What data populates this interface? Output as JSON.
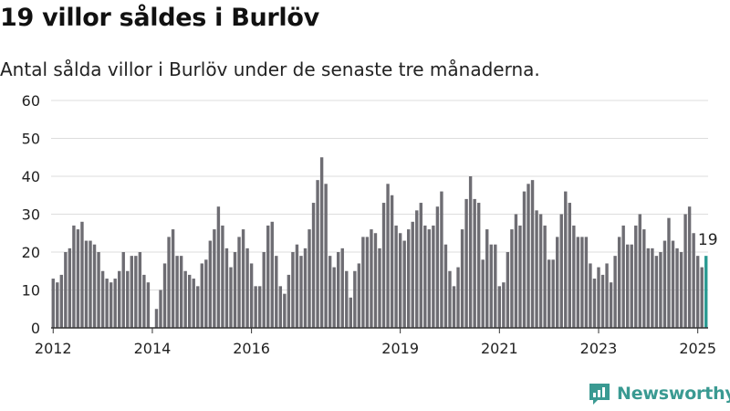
{
  "title": "19 villor såldes i Burlöv",
  "subtitle": "Antal sålda villor i Burlöv under de senaste tre månaderna.",
  "brand": {
    "name": "Newsworthy",
    "color": "#3a9a92"
  },
  "colors": {
    "bar": "#6e6d73",
    "highlight": "#2a9a92",
    "grid": "#dddddd",
    "axis": "#333333"
  },
  "chart_data": {
    "type": "bar",
    "title": "19 villor såldes i Burlöv",
    "subtitle": "Antal sålda villor i Burlöv under de senaste tre månaderna.",
    "xlabel": "",
    "ylabel": "",
    "ylim": [
      0,
      60
    ],
    "yticks": [
      0,
      10,
      20,
      30,
      40,
      50,
      60
    ],
    "grid": true,
    "x_start": "2012-01",
    "frequency": "monthly",
    "xtick_labels": [
      {
        "label": "2012",
        "month": "2012-01"
      },
      {
        "label": "2014",
        "month": "2014-01"
      },
      {
        "label": "2016",
        "month": "2016-01"
      },
      {
        "label": "2019",
        "month": "2019-01"
      },
      {
        "label": "2021",
        "month": "2021-01"
      },
      {
        "label": "2023",
        "month": "2023-01"
      },
      {
        "label": "2025",
        "month": "2025-01"
      }
    ],
    "highlight_label": "19",
    "values": [
      13,
      12,
      14,
      20,
      21,
      27,
      26,
      28,
      23,
      23,
      22,
      20,
      15,
      13,
      12,
      13,
      15,
      20,
      15,
      19,
      19,
      20,
      14,
      12,
      0,
      5,
      10,
      17,
      24,
      26,
      19,
      19,
      15,
      14,
      13,
      11,
      17,
      18,
      23,
      26,
      32,
      27,
      21,
      16,
      20,
      24,
      26,
      21,
      17,
      11,
      11,
      20,
      27,
      28,
      19,
      11,
      9,
      14,
      20,
      22,
      19,
      21,
      26,
      33,
      39,
      45,
      38,
      19,
      16,
      20,
      21,
      15,
      8,
      15,
      17,
      24,
      24,
      26,
      25,
      21,
      33,
      38,
      35,
      27,
      25,
      23,
      26,
      28,
      31,
      33,
      27,
      26,
      27,
      32,
      36,
      22,
      15,
      11,
      16,
      26,
      34,
      40,
      34,
      33,
      18,
      26,
      22,
      22,
      11,
      12,
      20,
      26,
      30,
      27,
      36,
      38,
      39,
      31,
      30,
      27,
      18,
      18,
      24,
      30,
      36,
      33,
      27,
      24,
      24,
      24,
      17,
      13,
      16,
      14,
      17,
      12,
      19,
      24,
      27,
      22,
      22,
      27,
      30,
      26,
      21,
      21,
      19,
      20,
      23,
      29,
      23,
      21,
      20,
      30,
      32,
      25,
      19,
      16,
      19
    ]
  }
}
